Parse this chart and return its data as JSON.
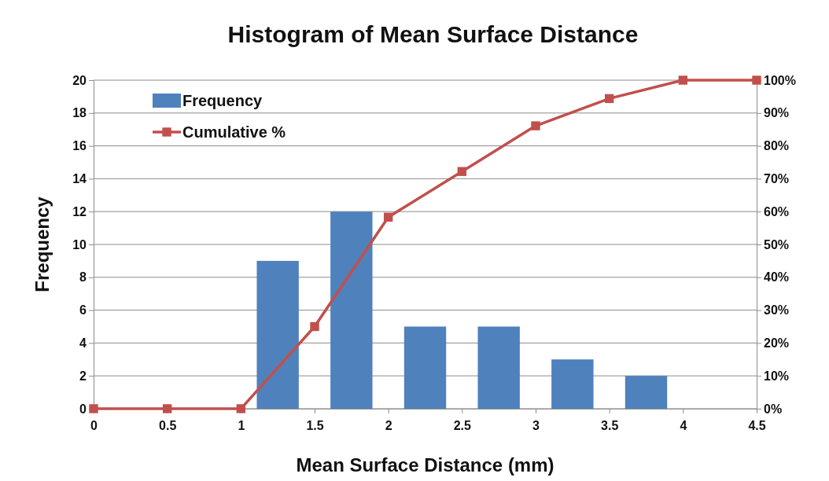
{
  "chart_data": {
    "type": "histogram",
    "title": "Histogram of Mean Surface Distance",
    "xlabel": "Mean Surface Distance (mm)",
    "ylabel": "Frequency",
    "bins": [
      0,
      0.5,
      1,
      1.5,
      2,
      2.5,
      3,
      3.5,
      4,
      4.5
    ],
    "series": [
      {
        "name": "Frequency",
        "color": "#4f81bd",
        "values": [
          0,
          0,
          9,
          12,
          5,
          5,
          3,
          2,
          0
        ]
      },
      {
        "name": "Cumulative %",
        "type": "line",
        "axis": "y2",
        "color": "#c0504d",
        "x": [
          0,
          0.5,
          1,
          1.5,
          2,
          2.5,
          3,
          3.5,
          4,
          4.5
        ],
        "values": [
          0,
          0,
          0,
          25,
          58.3,
          72.2,
          86.1,
          94.4,
          100,
          100
        ]
      }
    ],
    "xlim": [
      0,
      4.5
    ],
    "xticks": [
      0,
      0.5,
      1,
      1.5,
      2,
      2.5,
      3,
      3.5,
      4,
      4.5
    ],
    "ylim": [
      0,
      20
    ],
    "yticks": [
      0,
      2,
      4,
      6,
      8,
      10,
      12,
      14,
      16,
      18,
      20
    ],
    "y2lim": [
      0,
      100
    ],
    "y2ticks": [
      {
        "value": 0,
        "label": "0%"
      },
      {
        "value": 10,
        "label": "10%"
      },
      {
        "value": 20,
        "label": "20%"
      },
      {
        "value": 30,
        "label": "30%"
      },
      {
        "value": 40,
        "label": "40%"
      },
      {
        "value": 50,
        "label": "50%"
      },
      {
        "value": 60,
        "label": "60%"
      },
      {
        "value": 70,
        "label": "70%"
      },
      {
        "value": 80,
        "label": "80%"
      },
      {
        "value": 90,
        "label": "90%"
      },
      {
        "value": 100,
        "label": "100%"
      }
    ],
    "grid": "y",
    "legend": "top left",
    "marker": "square",
    "line_style": "solid"
  }
}
